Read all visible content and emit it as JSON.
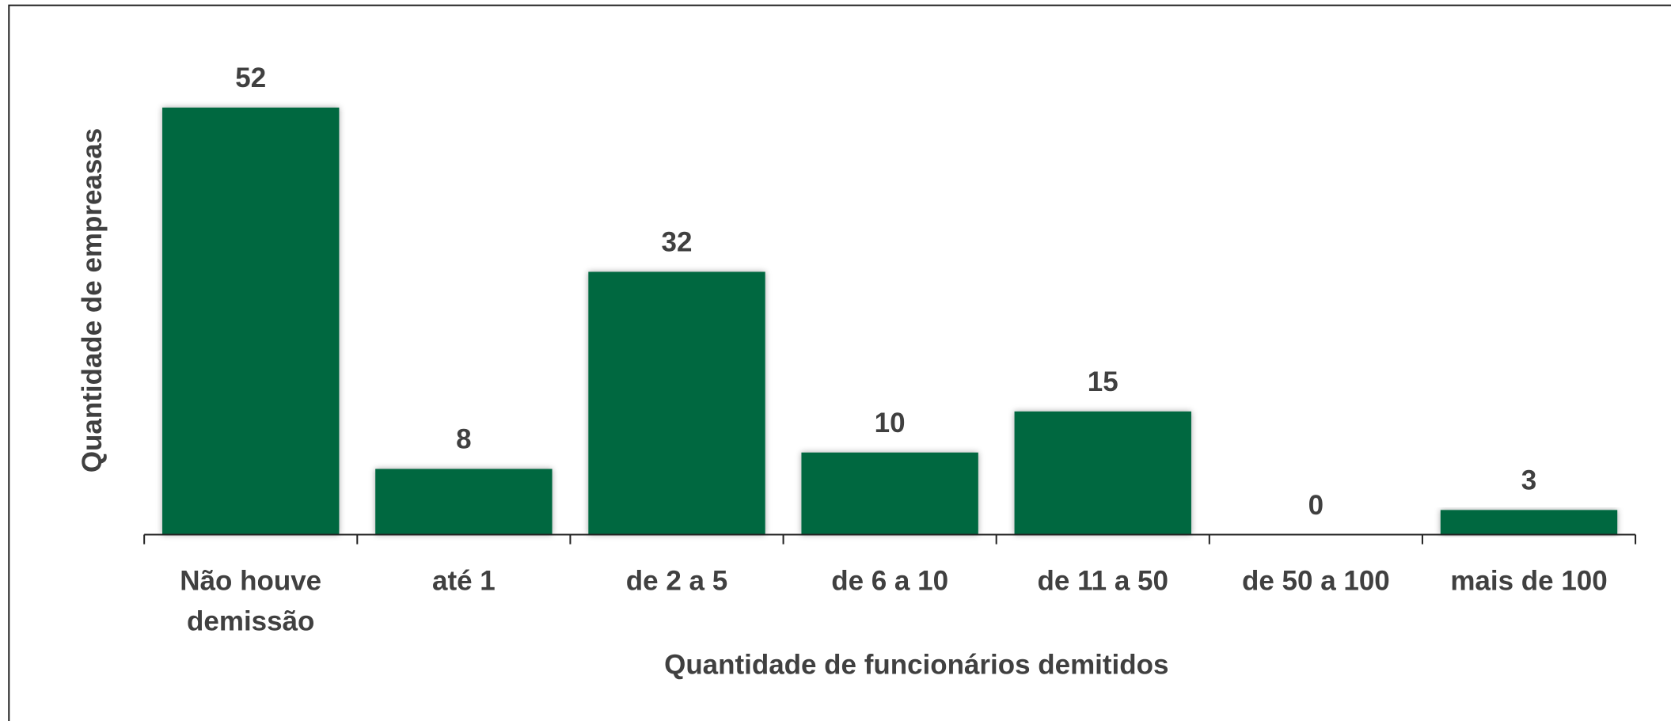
{
  "chart_data": {
    "type": "bar",
    "categories": [
      "Não houve demissão",
      "até 1",
      "de 2 a 5",
      "de 6 a 10",
      "de 11 a 50",
      "de 50 a 100",
      "mais de 100"
    ],
    "values": [
      52,
      8,
      32,
      10,
      15,
      0,
      3
    ],
    "color": "#036841",
    "x_label": "Quantidade de funcionários demitidos",
    "y_label": "Quantidade de empreasas"
  }
}
